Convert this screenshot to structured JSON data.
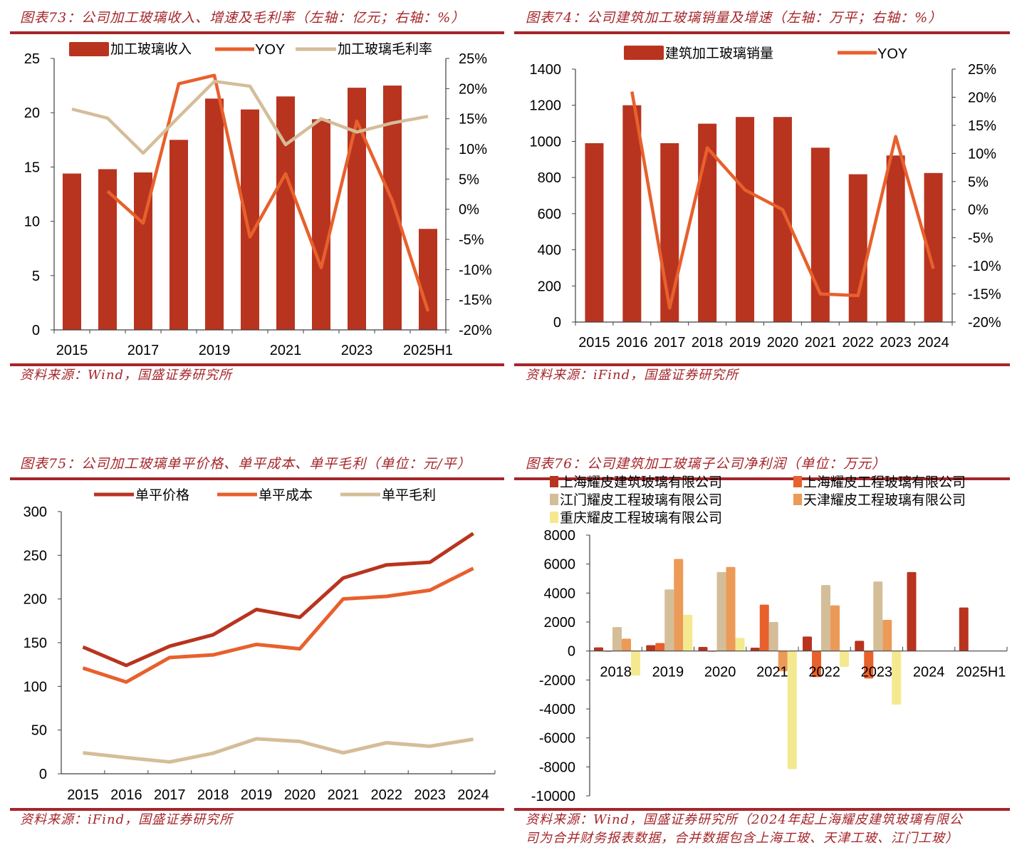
{
  "colors": {
    "brand_red": "#a5262a",
    "bar_red": "#b8341f",
    "line_orange": "#e8602c",
    "line_tan": "#d4bd99",
    "bar_tan": "#d4bd99",
    "bar_light_orange": "#ec9a57",
    "bar_yellow": "#f4e98f"
  },
  "charts": {
    "c73": {
      "title": "图表73：公司加工玻璃收入、增速及毛利率（左轴：亿元；右轴：%）",
      "source": "资料来源：Wind，国盛证券研究所"
    },
    "c74": {
      "title": "图表74：公司建筑加工玻璃销量及增速（左轴：万平；右轴：%）",
      "source": "资料来源：iFind，国盛证券研究所"
    },
    "c75": {
      "title": "图表75：公司加工玻璃单平价格、单平成本、单平毛利（单位：元/平）",
      "source": "资料来源：iFind，国盛证券研究所"
    },
    "c76": {
      "title": "图表76：公司建筑加工玻璃子公司净利润（单位：万元）",
      "source_line1": "资料来源：Wind，国盛证券研究所（2024年起上海耀皮建筑玻璃有限公",
      "source_line2": "司为合并财务报表数据，合并数据包含上海工玻、天津工玻、江门工玻）"
    }
  },
  "chart_data": [
    {
      "id": "c73",
      "type": "bar+line",
      "title": "图表73：公司加工玻璃收入、增速及毛利率（左轴：亿元；右轴：%）",
      "categories": [
        "2015",
        "2016",
        "2017",
        "2018",
        "2019",
        "2020",
        "2021",
        "2022",
        "2023",
        "2024",
        "2025H1"
      ],
      "xtick_labels": [
        "2015",
        "",
        "2017",
        "",
        "2019",
        "",
        "2021",
        "",
        "2023",
        "",
        "2025H1"
      ],
      "series": [
        {
          "name": "加工玻璃收入",
          "kind": "bar",
          "axis": "left",
          "color": "#b8341f",
          "values": [
            14.4,
            14.8,
            14.5,
            17.5,
            21.3,
            20.3,
            21.5,
            19.4,
            22.3,
            22.5,
            9.3
          ]
        },
        {
          "name": "YOY",
          "kind": "line",
          "axis": "right",
          "color": "#e8602c",
          "values": [
            null,
            3.0,
            -2.3,
            20.8,
            22.2,
            -4.6,
            5.9,
            -9.7,
            14.6,
            1.4,
            -16.9
          ]
        },
        {
          "name": "加工玻璃毛利率",
          "kind": "line",
          "axis": "right",
          "color": "#d4bd99",
          "values": [
            16.6,
            15.1,
            9.3,
            15.3,
            21.2,
            20.4,
            10.7,
            15.0,
            12.8,
            14.3,
            15.4
          ]
        }
      ],
      "ylim_left": [
        0,
        25
      ],
      "yticks_left": [
        0,
        5,
        10,
        15,
        20,
        25
      ],
      "ylim_right": [
        -20,
        25
      ],
      "yticks_right": [
        "-20%",
        "-15%",
        "-10%",
        "-5%",
        "0%",
        "5%",
        "10%",
        "15%",
        "20%",
        "25%"
      ],
      "legend": "top",
      "grid": false
    },
    {
      "id": "c74",
      "type": "bar+line",
      "title": "图表74：公司建筑加工玻璃销量及增速（左轴：万平；右轴：%）",
      "categories": [
        "2015",
        "2016",
        "2017",
        "2018",
        "2019",
        "2020",
        "2021",
        "2022",
        "2023",
        "2024"
      ],
      "series": [
        {
          "name": "建筑加工玻璃销量",
          "kind": "bar",
          "axis": "left",
          "color": "#b8341f",
          "values": [
            990,
            1200,
            990,
            1098,
            1135,
            1135,
            965,
            818,
            922,
            825
          ]
        },
        {
          "name": "YOY",
          "kind": "line",
          "axis": "right",
          "color": "#e8602c",
          "values": [
            null,
            21.0,
            -17.5,
            11.0,
            3.5,
            0.0,
            -15.0,
            -15.3,
            13.0,
            -10.5
          ]
        }
      ],
      "ylim_left": [
        0,
        1400
      ],
      "yticks_left": [
        0,
        200,
        400,
        600,
        800,
        1000,
        1200,
        1400
      ],
      "ylim_right": [
        -20,
        25
      ],
      "yticks_right": [
        "-20%",
        "-15%",
        "-10%",
        "-5%",
        "0%",
        "5%",
        "10%",
        "15%",
        "20%",
        "25%"
      ],
      "legend": "top",
      "grid": false
    },
    {
      "id": "c75",
      "type": "line",
      "title": "图表75：公司加工玻璃单平价格、单平成本、单平毛利（单位：元/平）",
      "categories": [
        "2015",
        "2016",
        "2017",
        "2018",
        "2019",
        "2020",
        "2021",
        "2022",
        "2023",
        "2024"
      ],
      "series": [
        {
          "name": "单平价格",
          "color": "#b8341f",
          "values": [
            145,
            124,
            146,
            159,
            188,
            179,
            224,
            239,
            242,
            275
          ]
        },
        {
          "name": "单平成本",
          "color": "#e8602c",
          "values": [
            121,
            105,
            133,
            136,
            148,
            143,
            200,
            203,
            210,
            235
          ]
        },
        {
          "name": "单平毛利",
          "color": "#d4bd99",
          "values": [
            24,
            18.5,
            13.5,
            23.5,
            40,
            37,
            24,
            35.5,
            31.5,
            39.5
          ]
        }
      ],
      "ylim": [
        0,
        300
      ],
      "yticks": [
        0,
        50,
        100,
        150,
        200,
        250,
        300
      ],
      "legend": "top",
      "grid": false
    },
    {
      "id": "c76",
      "type": "bar",
      "title": "图表76：公司建筑加工玻璃子公司净利润（单位：万元）",
      "categories": [
        "2018",
        "2019",
        "2020",
        "2021",
        "2022",
        "2023",
        "2024",
        "2025H1"
      ],
      "series": [
        {
          "name": "上海耀皮建筑玻璃有限公司",
          "color": "#b8341f",
          "values": [
            250,
            400,
            280,
            230,
            1000,
            700,
            5450,
            3000
          ]
        },
        {
          "name": "上海耀皮工程玻璃有限公司",
          "color": "#e8602c",
          "values": [
            -50,
            550,
            -50,
            3200,
            -1800,
            -1900,
            null,
            null
          ]
        },
        {
          "name": "江门耀皮工程玻璃有限公司",
          "color": "#d4bd99",
          "values": [
            1650,
            4250,
            5450,
            2000,
            4550,
            4800,
            null,
            null
          ]
        },
        {
          "name": "天津耀皮工程玻璃有限公司",
          "color": "#ec9a57",
          "values": [
            850,
            6350,
            5800,
            -1400,
            3150,
            2150,
            null,
            null
          ]
        },
        {
          "name": "重庆耀皮工程玻璃有限公司",
          "color": "#f4e98f",
          "values": [
            -1700,
            2500,
            900,
            -8150,
            -1100,
            -3700,
            null,
            null
          ]
        }
      ],
      "ylim": [
        -10000,
        8000
      ],
      "yticks": [
        -10000,
        -8000,
        -6000,
        -4000,
        -2000,
        0,
        2000,
        4000,
        6000,
        8000
      ],
      "legend": "top (two columns)",
      "grid": false
    }
  ]
}
